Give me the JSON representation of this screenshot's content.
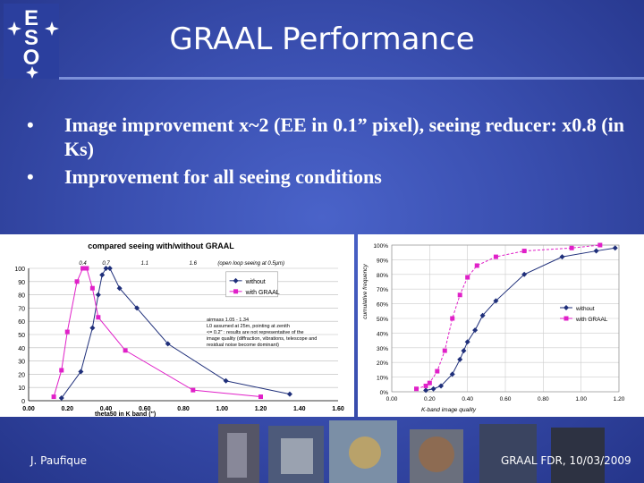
{
  "slide": {
    "title": "GRAAL Performance",
    "bullets": [
      "Image improvement x~2 (EE in 0.1” pixel), seeing reducer: x0.8 (in Ks)",
      "Improvement for all seeing conditions"
    ],
    "footer_left": "J. Paufique",
    "footer_right": "GRAAL FDR, 10/03/2009",
    "logo_text": "ESO"
  },
  "chart_data": [
    {
      "type": "line",
      "title": "compared seeing with/without GRAAL",
      "xlabel": "theta50 in K band (\")",
      "ylabel": "",
      "xlim": [
        0,
        1.6
      ],
      "ylim": [
        0,
        100
      ],
      "x_ticks": [
        "0.00",
        "0.20",
        "0.40",
        "0.60",
        "0.80",
        "1.00",
        "1.20",
        "1.40",
        "1.60"
      ],
      "y_ticks": [
        "0",
        "10",
        "20",
        "30",
        "40",
        "50",
        "60",
        "70",
        "80",
        "90",
        "100"
      ],
      "top_ticks": [
        "0.4",
        "0.7",
        "1.1",
        "1.6",
        "(open loop seeing at 0.5μm)"
      ],
      "top_tick_x": [
        0.28,
        0.4,
        0.6,
        0.85,
        1.15
      ],
      "annotation": [
        "airmass 1.05 - 1.34",
        "L0 assumed at 25m, pointing at zenith",
        "<= 0.2\" : results are not representative of the",
        "image quality (diffraction, vibrations, telescope and",
        "residual noise become dominant)"
      ],
      "legend": "top-right",
      "series": [
        {
          "name": "without",
          "color": "#1f2f7a",
          "marker": "diamond",
          "x": [
            0.17,
            0.27,
            0.33,
            0.36,
            0.38,
            0.4,
            0.42,
            0.47,
            0.56,
            0.72,
            1.02,
            1.35
          ],
          "y": [
            2,
            22,
            55,
            80,
            95,
            100,
            100,
            85,
            70,
            43,
            15,
            5
          ]
        },
        {
          "name": "with GRAAL",
          "color": "#e020c8",
          "marker": "square",
          "x": [
            0.13,
            0.17,
            0.2,
            0.25,
            0.28,
            0.3,
            0.33,
            0.36,
            0.5,
            0.85,
            1.2
          ],
          "y": [
            3,
            23,
            52,
            90,
            100,
            100,
            85,
            63,
            38,
            8,
            3
          ]
        }
      ]
    },
    {
      "type": "line",
      "title": "",
      "xlabel": "K-band image quality",
      "ylabel": "cumulative frequency",
      "xlim": [
        0,
        1.2
      ],
      "ylim": [
        0,
        100
      ],
      "x_ticks": [
        "0.00",
        "0.20",
        "0.40",
        "0.60",
        "0.80",
        "1.00",
        "1.20"
      ],
      "y_ticks": [
        "0%",
        "10%",
        "20%",
        "30%",
        "40%",
        "50%",
        "60%",
        "70%",
        "80%",
        "90%",
        "100%"
      ],
      "legend": "right",
      "series": [
        {
          "name": "without",
          "color": "#1f2f7a",
          "marker": "diamond",
          "x": [
            0.18,
            0.22,
            0.26,
            0.32,
            0.36,
            0.38,
            0.4,
            0.44,
            0.48,
            0.55,
            0.7,
            0.9,
            1.08,
            1.18
          ],
          "y": [
            1,
            2,
            4,
            12,
            22,
            28,
            34,
            42,
            52,
            62,
            80,
            92,
            96,
            98
          ]
        },
        {
          "name": "with GRAAL",
          "color": "#e020c8",
          "marker": "square",
          "x": [
            0.13,
            0.18,
            0.2,
            0.24,
            0.28,
            0.32,
            0.36,
            0.4,
            0.45,
            0.55,
            0.7,
            0.95,
            1.1
          ],
          "y": [
            2,
            4,
            6,
            14,
            28,
            50,
            66,
            78,
            86,
            92,
            96,
            98,
            100
          ]
        }
      ]
    }
  ]
}
